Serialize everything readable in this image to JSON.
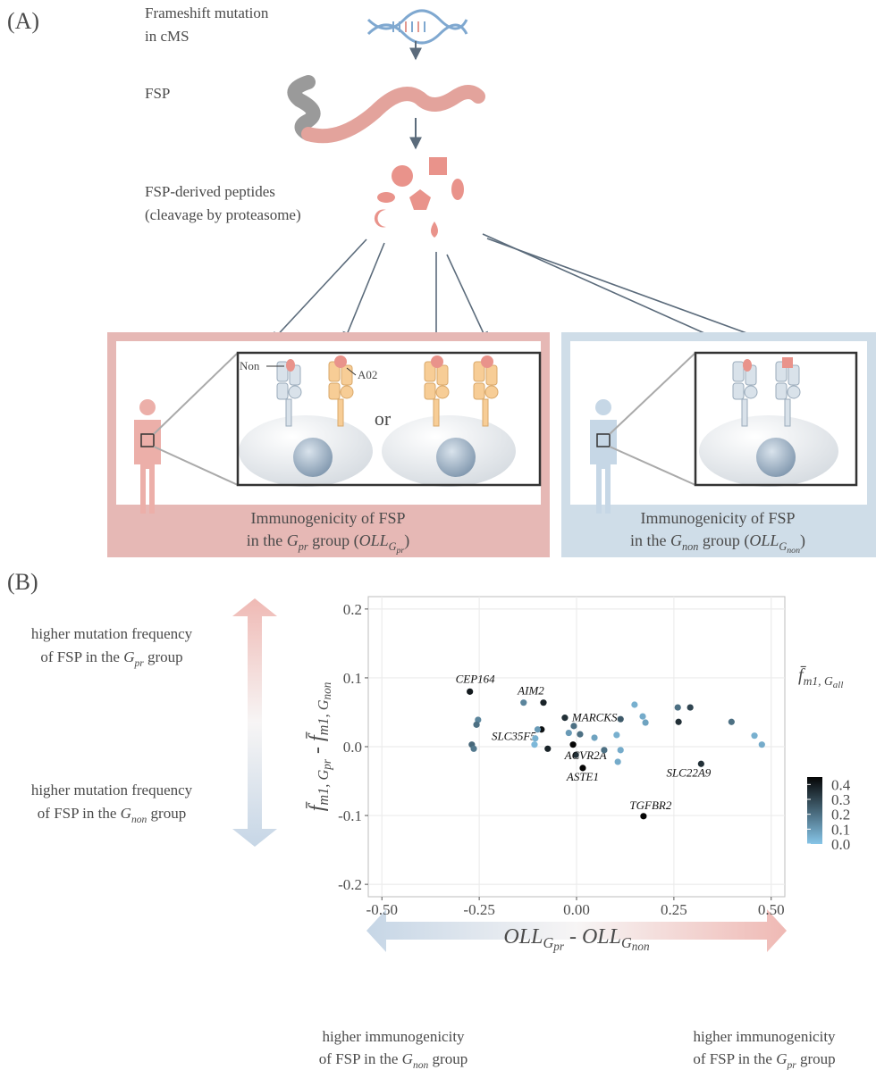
{
  "panel_a": {
    "label": "(A)",
    "step1": [
      "Frameshift mutation",
      "in cMS"
    ],
    "step2": "FSP",
    "step3": [
      "FSP-derived peptides",
      "(cleavage by proteasome)"
    ],
    "hla_non": "Non",
    "hla_a02": "A02",
    "or": "or",
    "caption_pr": [
      [
        "Immunogenicity of FSP"
      ],
      [
        "in the ",
        {
          "t": "G",
          "sub": "pr"
        },
        " group (",
        {
          "t": "OLL",
          "sub": "G",
          "subsub": "pr"
        },
        ")"
      ]
    ],
    "caption_non": [
      [
        "Immunogenicity of FSP"
      ],
      [
        "in the ",
        {
          "t": "G",
          "sub": "non"
        },
        " group (",
        {
          "t": "OLL",
          "sub": "G",
          "subsub": "non"
        },
        ")"
      ]
    ]
  },
  "panel_b": {
    "label": "(B)",
    "up_note": [
      [
        "higher mutation frequency"
      ],
      [
        "of FSP in the ",
        {
          "t": "G",
          "sub": "pr"
        },
        " group"
      ]
    ],
    "down_note": [
      [
        "higher mutation frequency"
      ],
      [
        "of FSP in the ",
        {
          "t": "G",
          "sub": "non"
        },
        " group"
      ]
    ],
    "left_note": [
      [
        "higher immunogenicity"
      ],
      [
        "of FSP in the ",
        {
          "t": "G",
          "sub": "non"
        },
        " group"
      ]
    ],
    "right_note": [
      [
        "higher immunogenicity"
      ],
      [
        "of FSP in the ",
        {
          "t": "G",
          "sub": "pr"
        },
        " group"
      ]
    ]
  },
  "chart_data": {
    "type": "scatter",
    "x_title": [
      {
        "t": "OLL",
        "sub": "G",
        "subsub": "pr"
      },
      " - ",
      {
        "t": "OLL",
        "sub": "G",
        "subsub": "non"
      }
    ],
    "y_title": [
      {
        "t": "f̄",
        "sub": "m1, G",
        "subsub": "pr"
      },
      " - ",
      {
        "t": "f̄",
        "sub": "m1, G",
        "subsub": "non"
      }
    ],
    "color_title": [
      {
        "t": "f̄",
        "sub": "m1, G",
        "subsub": "all"
      }
    ],
    "xlim": [
      -0.535,
      0.535
    ],
    "ylim": [
      -0.218,
      0.218
    ],
    "xticks": [
      {
        "value": -0.5,
        "label": "-0.50"
      },
      {
        "value": -0.25,
        "label": "-0.25"
      },
      {
        "value": 0,
        "label": "0.00"
      },
      {
        "value": 0.25,
        "label": "0.25"
      },
      {
        "value": 0.5,
        "label": "0.50"
      }
    ],
    "yticks": [
      0.2,
      0.1,
      {
        "value": 0,
        "label": "0.0"
      },
      -0.1,
      -0.2
    ],
    "clim": [
      0,
      0.45
    ],
    "cticks": [
      0.4,
      0.3,
      0.2,
      0.1,
      {
        "value": 0,
        "label": "0.0"
      }
    ],
    "color_low": "#86c5e8",
    "color_high": "#050505",
    "grid": true,
    "x": [
      -0.274,
      -0.136,
      -0.085,
      -0.253,
      -0.257,
      -0.269,
      -0.264,
      -0.03,
      -0.007,
      -0.09,
      -0.106,
      -0.108,
      -0.074,
      -0.009,
      -0.002,
      0.009,
      0.016,
      0.046,
      0.071,
      0.103,
      0.106,
      0.113,
      0.113,
      0.149,
      0.17,
      0.177,
      0.172,
      0.26,
      0.262,
      0.292,
      0.32,
      0.398,
      0.457,
      0.476,
      -0.02,
      -0.1
    ],
    "values": [
      0.08,
      0.064,
      0.064,
      0.039,
      0.032,
      0.003,
      -0.003,
      0.042,
      0.03,
      0.025,
      0.012,
      0.003,
      -0.003,
      0.003,
      -0.012,
      0.018,
      -0.031,
      0.013,
      -0.005,
      0.017,
      -0.022,
      -0.005,
      0.04,
      0.061,
      0.044,
      0.035,
      -0.101,
      0.057,
      0.036,
      0.057,
      -0.025,
      0.036,
      0.016,
      0.003,
      0.02,
      0.025
    ],
    "color_values": [
      0.4,
      0.15,
      0.38,
      0.15,
      0.2,
      0.22,
      0.18,
      0.35,
      0.2,
      0.42,
      0.05,
      0.03,
      0.38,
      0.45,
      0.35,
      0.2,
      0.45,
      0.08,
      0.2,
      0.05,
      0.06,
      0.06,
      0.25,
      0.05,
      0.06,
      0.08,
      0.45,
      0.2,
      0.35,
      0.3,
      0.35,
      0.2,
      0.05,
      0.06,
      0.1,
      0.1
    ],
    "point_labels": [
      "CEP164",
      null,
      "AIM2",
      null,
      null,
      null,
      null,
      "MARCKS",
      null,
      "SLC35F5",
      null,
      null,
      null,
      null,
      "ACVR2A",
      null,
      "ASTE1",
      null,
      null,
      null,
      null,
      null,
      null,
      null,
      null,
      null,
      "TGFBR2",
      null,
      null,
      null,
      "SLC22A9",
      null,
      null,
      null,
      null,
      null
    ]
  }
}
